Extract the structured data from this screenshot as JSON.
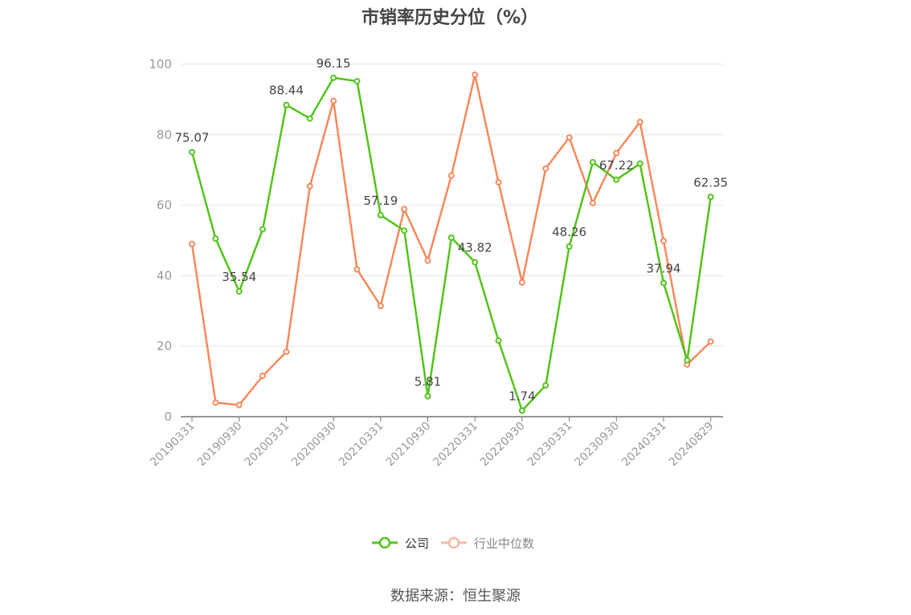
{
  "title": "市销率历史分位（%）",
  "source": "数据来源：恒生聚源",
  "colors": {
    "company": "#52c41a",
    "industry": "#f5895c",
    "industry_legend": "#f8b9a0"
  },
  "chart_data": {
    "type": "line",
    "title": "市销率历史分位（%）",
    "xlabel": "",
    "ylabel": "",
    "ylim": [
      0,
      100
    ],
    "yticks": [
      "0",
      "20",
      "40",
      "60",
      "80",
      "100"
    ],
    "x_tick_labels": [
      "20190331",
      "20190930",
      "20200331",
      "20200930",
      "20210331",
      "20210930",
      "20220331",
      "20220930",
      "20230331",
      "20230930",
      "20240331",
      "20240829"
    ],
    "grid": true,
    "legend_position": "bottom",
    "series": [
      {
        "name": "公司",
        "values": [
          75.07,
          50.5,
          35.54,
          53.2,
          88.44,
          84.6,
          96.15,
          95.2,
          57.19,
          52.8,
          5.81,
          50.8,
          43.82,
          21.6,
          1.74,
          8.9,
          48.26,
          72.2,
          67.22,
          71.8,
          37.94,
          16.0,
          62.35
        ],
        "labels": {
          "0": "75.07",
          "2": "35.54",
          "4": "88.44",
          "6": "96.15",
          "8": "57.19",
          "10": "5.81",
          "12": "43.82",
          "14": "1.74",
          "16": "48.26",
          "18": "67.22",
          "20": "37.94",
          "22": "62.35"
        }
      },
      {
        "name": "行业中位数",
        "values": [
          49.0,
          4.0,
          3.3,
          11.6,
          18.4,
          65.4,
          89.6,
          41.8,
          31.4,
          58.9,
          44.3,
          68.4,
          97.0,
          66.5,
          38.1,
          70.4,
          79.2,
          60.6,
          74.8,
          83.6,
          49.9,
          14.8,
          21.3
        ]
      }
    ]
  }
}
